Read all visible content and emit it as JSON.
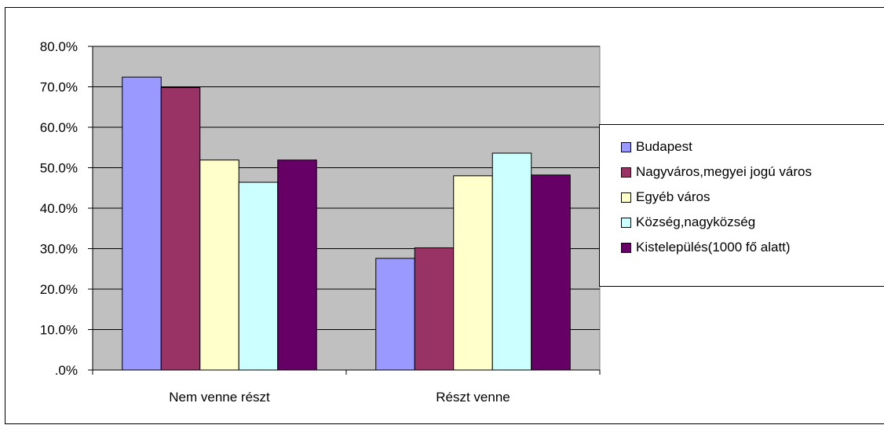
{
  "chart_data": {
    "type": "bar",
    "categories": [
      "Nem venne részt",
      "Részt venne"
    ],
    "series": [
      {
        "name": "Budapest",
        "color": "#9999ff",
        "values": [
          72.4,
          27.6
        ]
      },
      {
        "name": "Nagyváros,megyei jogú város",
        "color": "#993366",
        "values": [
          69.8,
          30.2
        ]
      },
      {
        "name": "Egyéb város",
        "color": "#ffffcc",
        "values": [
          51.9,
          48.0
        ]
      },
      {
        "name": "Község,nagyközség",
        "color": "#ccffff",
        "values": [
          46.4,
          53.6
        ]
      },
      {
        "name": "Kistelepülés(1000 fő alatt)",
        "color": "#660066",
        "values": [
          51.9,
          48.2
        ]
      }
    ],
    "yticks": [
      ".0%",
      "10.0%",
      "20.0%",
      "30.0%",
      "40.0%",
      "50.0%",
      "60.0%",
      "70.0%",
      "80.0%"
    ],
    "ylim": [
      0,
      80
    ],
    "grid": true,
    "plot_background": "#c0c0c0",
    "legend_position": "right"
  }
}
